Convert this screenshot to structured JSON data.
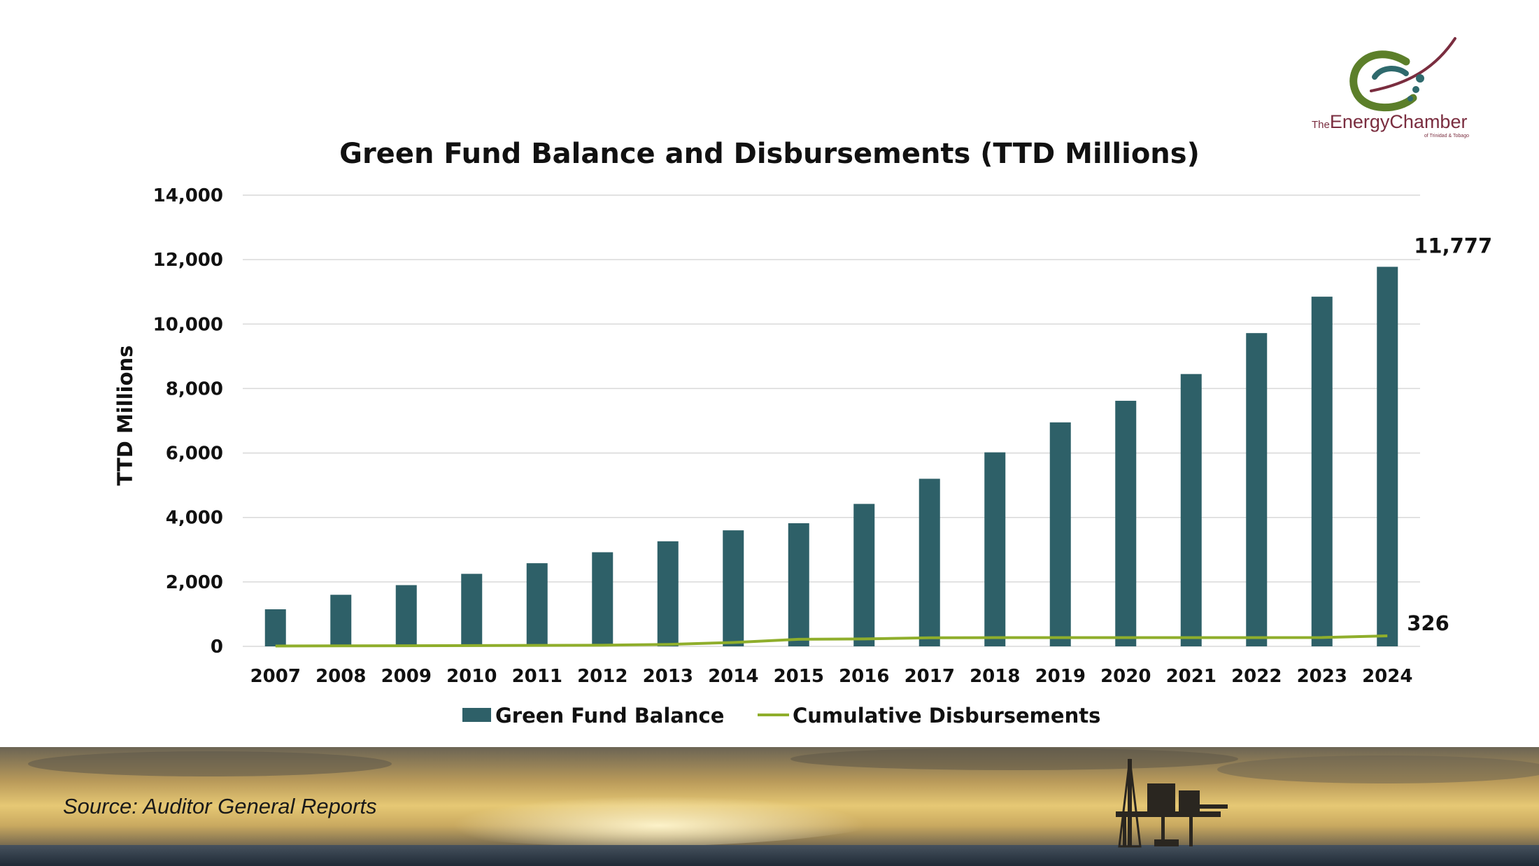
{
  "logo": {
    "prefix": "The",
    "name": "EnergyChamber",
    "tagline": "of Trinidad & Tobago"
  },
  "footer": {
    "source": "Source: Auditor General Reports"
  },
  "colors": {
    "bar": "#2e6068",
    "line": "#8fae2b",
    "grid": "#d9d9d9"
  },
  "chart_data": {
    "type": "bar",
    "title": "Green Fund Balance and Disbursements (TTD Millions)",
    "xlabel": "",
    "ylabel": "TTD Millions",
    "ylim": [
      0,
      14000
    ],
    "yticks": [
      0,
      2000,
      4000,
      6000,
      8000,
      10000,
      12000,
      14000
    ],
    "ytick_labels": [
      "0",
      "2,000",
      "4,000",
      "6,000",
      "8,000",
      "10,000",
      "12,000",
      "14,000"
    ],
    "grid": true,
    "legend_position": "bottom",
    "categories": [
      "2007",
      "2008",
      "2009",
      "2010",
      "2011",
      "2012",
      "2013",
      "2014",
      "2015",
      "2016",
      "2017",
      "2018",
      "2019",
      "2020",
      "2021",
      "2022",
      "2023",
      "2024"
    ],
    "series": [
      {
        "name": "Green Fund Balance",
        "kind": "bar",
        "values": [
          1150,
          1600,
          1900,
          2250,
          2580,
          2920,
          3260,
          3600,
          3820,
          4420,
          5200,
          6020,
          6950,
          7620,
          8450,
          9720,
          10850,
          11777
        ]
      },
      {
        "name": "Cumulative Disbursements",
        "kind": "line",
        "values": [
          10,
          15,
          20,
          25,
          30,
          35,
          60,
          120,
          220,
          230,
          265,
          270,
          270,
          270,
          270,
          270,
          275,
          326
        ]
      }
    ],
    "annotations": [
      {
        "series": "Green Fund Balance",
        "category": "2024",
        "text": "11,777"
      },
      {
        "series": "Cumulative Disbursements",
        "category": "2024",
        "text": "326"
      }
    ]
  }
}
